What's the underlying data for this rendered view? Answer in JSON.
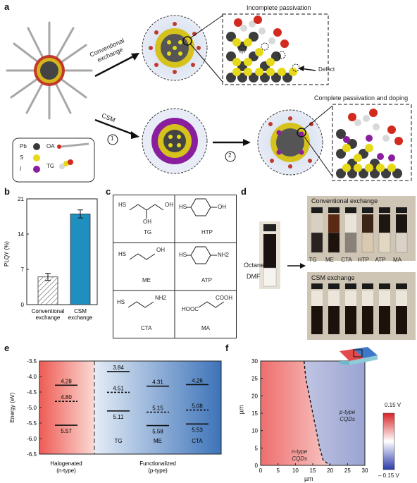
{
  "panel_labels": {
    "a": "a",
    "b": "b",
    "c": "c",
    "d": "d",
    "e": "e",
    "f": "f"
  },
  "panel_a": {
    "conventional_exchange": [
      "Conventional",
      "exchange"
    ],
    "csm": "CSM",
    "step1": "1",
    "step2": "2",
    "incomplete_title": "Incomplete passivation",
    "complete_title": "Complete passivation and doping",
    "defect": "Defect",
    "legend": [
      {
        "symbol": "Pb",
        "color": "#3a3a3a",
        "group": "atom"
      },
      {
        "symbol": "S",
        "color": "#e6d91a",
        "group": "atom"
      },
      {
        "symbol": "I",
        "color": "#8a1f9e",
        "group": "atom"
      },
      {
        "symbol": "OA",
        "group": "ligand"
      },
      {
        "symbol": "TG",
        "group": "ligand"
      }
    ]
  },
  "panel_b": {
    "chart_data": {
      "type": "bar",
      "categories": [
        [
          "Conventional",
          "exchange"
        ],
        [
          "CSM",
          "exchange"
        ]
      ],
      "values": [
        5.5,
        18.0
      ],
      "errors": [
        0.7,
        0.8
      ],
      "bar_colors": [
        "hatched",
        "#1f8fc0"
      ],
      "ylabel": "PLQY (%)",
      "ylim": [
        0,
        21
      ],
      "yticks": [
        0,
        7,
        14,
        21
      ]
    }
  },
  "panel_c": {
    "molecules": [
      {
        "name": "TG",
        "groups": [
          "HS",
          "OH",
          "OH"
        ]
      },
      {
        "name": "HTP",
        "groups": [
          "HS",
          "OH"
        ]
      },
      {
        "name": "ME",
        "groups": [
          "HS",
          "OH"
        ]
      },
      {
        "name": "ATP",
        "groups": [
          "HS",
          "NH2"
        ]
      },
      {
        "name": "CTA",
        "groups": [
          "HS",
          "NH2"
        ]
      },
      {
        "name": "MA",
        "groups": [
          "HOOC",
          "COOH"
        ]
      }
    ]
  },
  "panel_d": {
    "octane": "Octane",
    "dmf": "DMF",
    "conventional_title": "Conventional exchange",
    "csm_title": "CSM exchange",
    "vial_labels": [
      "TG",
      "ME",
      "CTA",
      "HTP",
      "ATP",
      "MA"
    ]
  },
  "panel_e": {
    "chart_data": {
      "type": "line",
      "ylabel": "Energy (eV)",
      "ylim": [
        -6.5,
        -3.5
      ],
      "yticks": [
        -3.5,
        -4.0,
        -4.5,
        -5.0,
        -5.5,
        -6.0,
        -6.5
      ],
      "ytick_labels": [
        "-3.5",
        "-4.0",
        "-4.5",
        "-5.0",
        "-5.5",
        "-6.0",
        "-6.5"
      ],
      "columns": [
        {
          "label": "",
          "cb": -4.28,
          "ef": -4.8,
          "vb": -5.57,
          "cb_label": "4.28",
          "ef_label": "4.80",
          "vb_label": "5.57"
        },
        {
          "label": "TG",
          "cb": -3.84,
          "ef": -4.51,
          "vb": -5.11,
          "cb_label": "3.84",
          "ef_label": "4.51",
          "vb_label": "5.11"
        },
        {
          "label": "ME",
          "cb": -4.31,
          "ef": -5.15,
          "vb": -5.58,
          "cb_label": "4.31",
          "ef_label": "5.15",
          "vb_label": "5.58"
        },
        {
          "label": "CTA",
          "cb": -4.26,
          "ef": -5.08,
          "vb": -5.53,
          "cb_label": "4.26",
          "ef_label": "5.08",
          "vb_label": "5.53"
        }
      ],
      "groups": [
        {
          "name": "Halogenated",
          "sub": "(n-type)"
        },
        {
          "name": "Functionalized",
          "sub": "(p-type)"
        }
      ]
    }
  },
  "panel_f": {
    "chart_data": {
      "type": "heatmap",
      "xlabel": "µm",
      "ylabel": "µm",
      "xlim": [
        0,
        30
      ],
      "ylim": [
        0,
        30
      ],
      "xticks": [
        0,
        5,
        10,
        15,
        20,
        25,
        30
      ],
      "yticks": [
        0,
        5,
        10,
        15,
        20,
        25,
        30
      ],
      "colorbar": {
        "max_label": "0.15 V",
        "min_label": "– 0.15 V",
        "max": 0.15,
        "min": -0.15
      },
      "regions": [
        {
          "name": "n-type",
          "sub": "CQDs"
        },
        {
          "name": "p-type",
          "sub": "CQDs"
        }
      ]
    }
  }
}
